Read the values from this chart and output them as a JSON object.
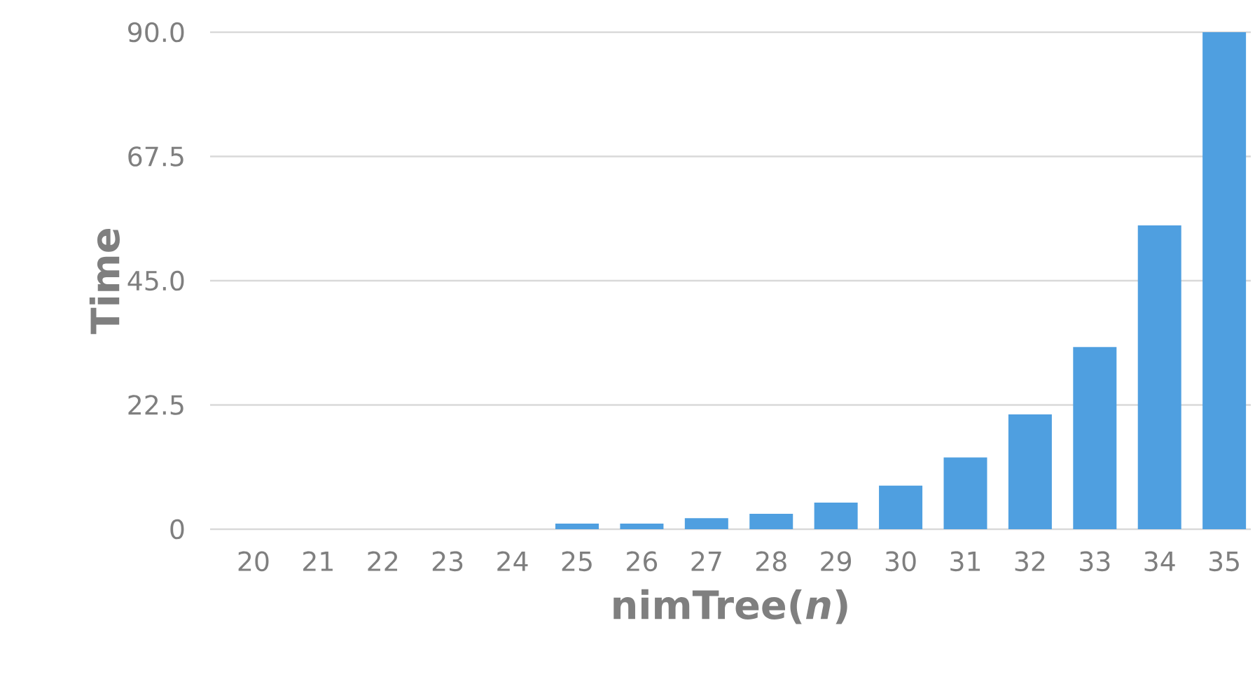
{
  "chart_data": {
    "type": "bar",
    "xlabel": "nimTree(*n*)",
    "ylabel": "Time",
    "categories": [
      "20",
      "21",
      "22",
      "23",
      "24",
      "25",
      "26",
      "27",
      "28",
      "29",
      "30",
      "31",
      "32",
      "33",
      "34",
      "35"
    ],
    "values": [
      0,
      0,
      0,
      0,
      0,
      1,
      1,
      2,
      2.8,
      4.8,
      7.9,
      13,
      20.8,
      33,
      55,
      90
    ],
    "color": "#4f9fe0",
    "ylim": [
      0,
      90
    ],
    "yticks": [
      {
        "value": 0,
        "label": "0"
      },
      {
        "value": 22.5,
        "label": "22.5"
      },
      {
        "value": 45,
        "label": "45.0"
      },
      {
        "value": 67.5,
        "label": "67.5"
      },
      {
        "value": 90,
        "label": "90.0"
      }
    ],
    "grid": "y"
  }
}
